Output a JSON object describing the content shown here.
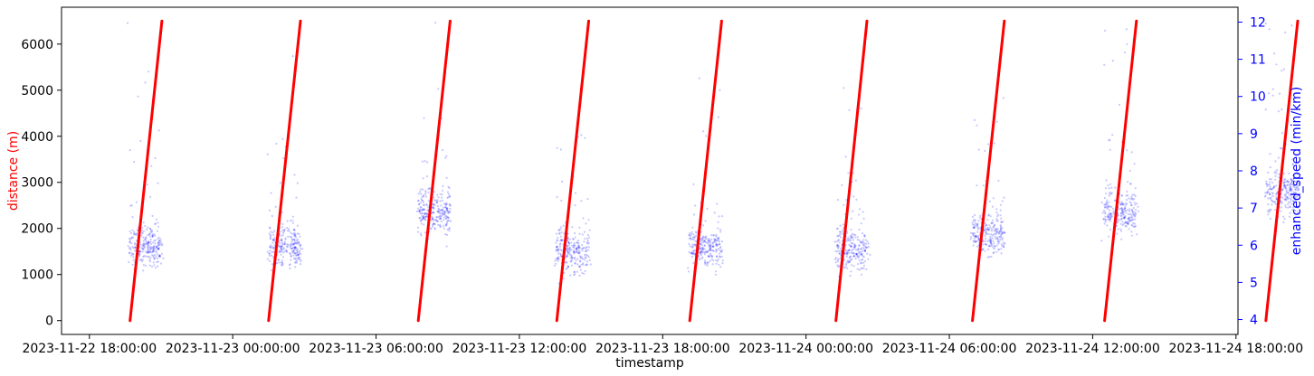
{
  "chart_data": {
    "type": "line",
    "xlabel": "timestamp",
    "ylabel_left": "distance (m)",
    "ylabel_right": "enhanced_speed (min/km)",
    "x_ticks": [
      "2023-11-22 18:00:00",
      "2023-11-23 00:00:00",
      "2023-11-23 06:00:00",
      "2023-11-23 12:00:00",
      "2023-11-23 18:00:00",
      "2023-11-24 00:00:00",
      "2023-11-24 06:00:00",
      "2023-11-24 12:00:00",
      "2023-11-24 18:00:00"
    ],
    "x_range": [
      "2023-11-22 16:50",
      "2023-11-24 18:05"
    ],
    "y_left_ticks": [
      0,
      1000,
      2000,
      3000,
      4000,
      5000,
      6000
    ],
    "y_left_range": [
      -300,
      6800
    ],
    "y_right_ticks": [
      4,
      5,
      6,
      7,
      8,
      9,
      10,
      11,
      12
    ],
    "y_right_range": [
      3.6,
      12.4
    ],
    "colors": {
      "distance": "#ff0000",
      "speed": "#0000ff",
      "axis": "#000000"
    },
    "grid": false,
    "series": [
      {
        "name": "distance (m)",
        "axis": "left",
        "style": "line",
        "runs": [
          {
            "start": "2023-11-22 19:42",
            "end": "2023-11-22 21:02",
            "distance": [
              0,
              6500
            ]
          },
          {
            "start": "2023-11-23 01:30",
            "end": "2023-11-23 02:50",
            "distance": [
              0,
              6500
            ]
          },
          {
            "start": "2023-11-23 07:46",
            "end": "2023-11-23 09:06",
            "distance": [
              0,
              6500
            ]
          },
          {
            "start": "2023-11-23 13:34",
            "end": "2023-11-23 14:54",
            "distance": [
              0,
              6500
            ]
          },
          {
            "start": "2023-11-23 19:08",
            "end": "2023-11-23 20:28",
            "distance": [
              0,
              6500
            ]
          },
          {
            "start": "2023-11-24 01:15",
            "end": "2023-11-24 02:33",
            "distance": [
              0,
              6500
            ]
          },
          {
            "start": "2023-11-24 06:58",
            "end": "2023-11-24 08:18",
            "distance": [
              0,
              6500
            ]
          },
          {
            "start": "2023-11-24 12:30",
            "end": "2023-11-24 13:50",
            "distance": [
              0,
              6500
            ]
          },
          {
            "start": "2023-11-24 19:15",
            "end": "2023-11-24 20:35",
            "distance": [
              0,
              6500
            ]
          },
          {
            "start": "2023-11-25 01:56",
            "end": "2023-11-25 03:16",
            "distance": [
              0,
              6500
            ]
          },
          {
            "start": "2023-11-25 07:48",
            "end": "2023-11-25 09:08",
            "distance": [
              0,
              6500
            ]
          },
          {
            "start": "2023-11-25 13:45",
            "end": "2023-11-25 15:05",
            "distance": [
              0,
              6500
            ]
          }
        ]
      },
      {
        "name": "enhanced_speed (min/km)",
        "axis": "right",
        "style": "scatter",
        "runs": [
          {
            "start": "2023-11-22 19:42",
            "end": "2023-11-22 21:02",
            "median_pace": 5.95
          },
          {
            "start": "2023-11-23 01:30",
            "end": "2023-11-23 02:50",
            "median_pace": 6.0
          },
          {
            "start": "2023-11-23 07:46",
            "end": "2023-11-23 09:06",
            "median_pace": 6.9
          },
          {
            "start": "2023-11-23 13:34",
            "end": "2023-11-23 14:54",
            "median_pace": 5.85
          },
          {
            "start": "2023-11-23 19:08",
            "end": "2023-11-23 20:28",
            "median_pace": 5.95
          },
          {
            "start": "2023-11-24 01:15",
            "end": "2023-11-24 02:33",
            "median_pace": 5.9
          },
          {
            "start": "2023-11-24 06:58",
            "end": "2023-11-24 08:18",
            "median_pace": 6.3
          },
          {
            "start": "2023-11-24 12:30",
            "end": "2023-11-24 13:50",
            "median_pace": 6.9
          },
          {
            "start": "2023-11-24 19:15",
            "end": "2023-11-24 20:35",
            "median_pace": 7.4
          },
          {
            "start": "2023-11-25 01:56",
            "end": "2023-11-25 03:16",
            "median_pace": 6.4
          },
          {
            "start": "2023-11-25 07:48",
            "end": "2023-11-25 09:08",
            "median_pace": 5.9
          },
          {
            "start": "2023-11-25 13:45",
            "end": "2023-11-25 15:05",
            "median_pace": 6.0
          }
        ]
      }
    ]
  }
}
